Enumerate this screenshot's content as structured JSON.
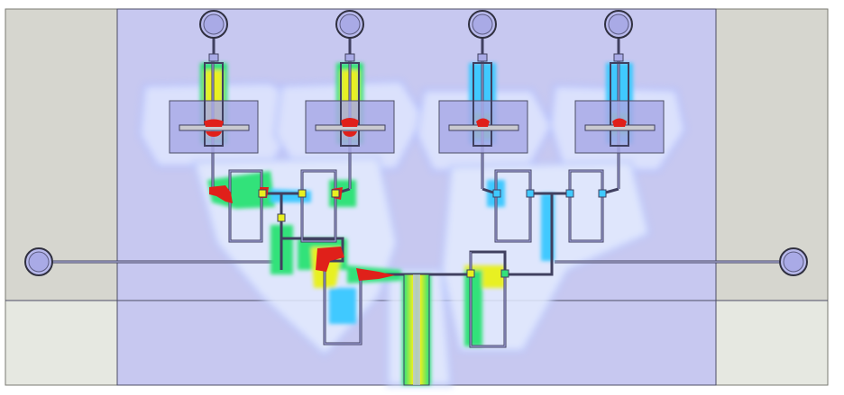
{
  "colors": {
    "side_panel_upper": "#d6d6cf",
    "side_panel_lower": "#e6e8e1",
    "board": "#c7c8f0",
    "board_border": "#4d4e66",
    "trace": "#9fa0d8",
    "trace_outline": "#404060",
    "pad_fill": "#b8b9ec",
    "field_low": "#3fc9ff",
    "field_mid": "#32e27a",
    "field_high": "#e8f020",
    "field_peak": "#e0201a"
  },
  "diagram": {
    "antenna_ports": 4,
    "side_ports": 2,
    "feed_port": 1
  }
}
